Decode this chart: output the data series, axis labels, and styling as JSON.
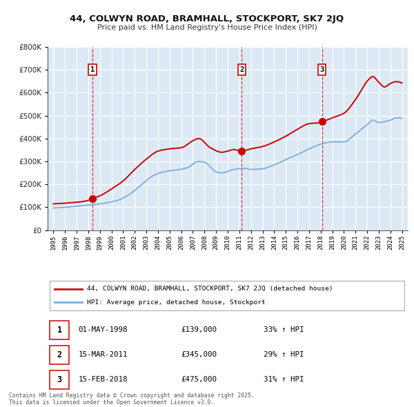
{
  "title": "44, COLWYN ROAD, BRAMHALL, STOCKPORT, SK7 2JQ",
  "subtitle": "Price paid vs. HM Land Registry's House Price Index (HPI)",
  "xlim": [
    1994.5,
    2025.5
  ],
  "ylim": [
    0,
    800000
  ],
  "yticks": [
    0,
    100000,
    200000,
    300000,
    400000,
    500000,
    600000,
    700000,
    800000
  ],
  "bg_color": "#dce9f5",
  "fig_color": "#ffffff",
  "grid_color": "#ffffff",
  "red_line_color": "#cc0000",
  "blue_line_color": "#7aaed6",
  "sale_points": [
    {
      "num": 1,
      "year": 1998.37,
      "price": 139000,
      "date": "01-MAY-1998"
    },
    {
      "num": 2,
      "year": 2011.21,
      "price": 345000,
      "date": "15-MAR-2011"
    },
    {
      "num": 3,
      "year": 2018.12,
      "price": 475000,
      "date": "15-FEB-2018"
    }
  ],
  "legend_red_label": "44, COLWYN ROAD, BRAMHALL, STOCKPORT, SK7 2JQ (detached house)",
  "legend_blue_label": "HPI: Average price, detached house, Stockport",
  "footer": "Contains HM Land Registry data © Crown copyright and database right 2025.\nThis data is licensed under the Open Government Licence v3.0.",
  "table_rows": [
    [
      "1",
      "01-MAY-1998",
      "£139,000",
      "33% ↑ HPI"
    ],
    [
      "2",
      "15-MAR-2011",
      "£345,000",
      "29% ↑ HPI"
    ],
    [
      "3",
      "15-FEB-2018",
      "£475,000",
      "31% ↑ HPI"
    ]
  ]
}
